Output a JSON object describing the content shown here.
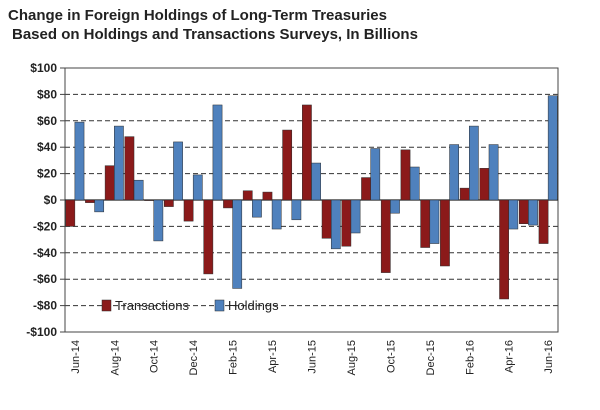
{
  "chart_data": {
    "type": "bar",
    "title": "Change in Foreign Holdings of Long-Term Treasuries",
    "subtitle": "Based on Holdings and Transactions Surveys, In Billions",
    "xlabel": "",
    "ylabel": "",
    "ylim": [
      -100,
      100
    ],
    "y_ticks": [
      100,
      80,
      60,
      40,
      20,
      0,
      -20,
      -40,
      -60,
      -80,
      -100
    ],
    "y_tick_labels": [
      "$100",
      "$80",
      "$60",
      "$40",
      "$20",
      "$0",
      "-$20",
      "-$40",
      "-$60",
      "-$80",
      "-$100"
    ],
    "grid": "horizontal dashed",
    "legend_position": "bottom-left",
    "categories": [
      "Jun-14",
      "Jul-14",
      "Aug-14",
      "Sep-14",
      "Oct-14",
      "Nov-14",
      "Dec-14",
      "Jan-15",
      "Feb-15",
      "Mar-15",
      "Apr-15",
      "May-15",
      "Jun-15",
      "Jul-15",
      "Aug-15",
      "Sep-15",
      "Oct-15",
      "Nov-15",
      "Dec-15",
      "Jan-16",
      "Feb-16",
      "Mar-16",
      "Apr-16",
      "May-16",
      "Jun-16"
    ],
    "x_tick_labels": [
      "Jun-14",
      "",
      "Aug-14",
      "",
      "Oct-14",
      "",
      "Dec-14",
      "",
      "Feb-15",
      "",
      "Apr-15",
      "",
      "Jun-15",
      "",
      "Aug-15",
      "",
      "Oct-15",
      "",
      "Dec-15",
      "",
      "Feb-16",
      "",
      "Apr-16",
      "",
      "Jun-16"
    ],
    "series": [
      {
        "name": "Transactions",
        "color": "#8B1A1A",
        "values": [
          -20,
          -2,
          26,
          48,
          0,
          -5,
          -16,
          -56,
          -6,
          7,
          6,
          53,
          72,
          -29,
          -35,
          17,
          -55,
          38,
          -36,
          -50,
          9,
          24,
          -75,
          -18,
          -33
        ]
      },
      {
        "name": "Holdings",
        "color": "#4F81BD",
        "values": [
          59,
          -9,
          56,
          15,
          -31,
          44,
          19,
          72,
          -67,
          -13,
          -22,
          -15,
          28,
          -37,
          -25,
          39,
          -10,
          25,
          -33,
          42,
          56,
          42,
          -22,
          -19,
          79
        ]
      }
    ]
  }
}
